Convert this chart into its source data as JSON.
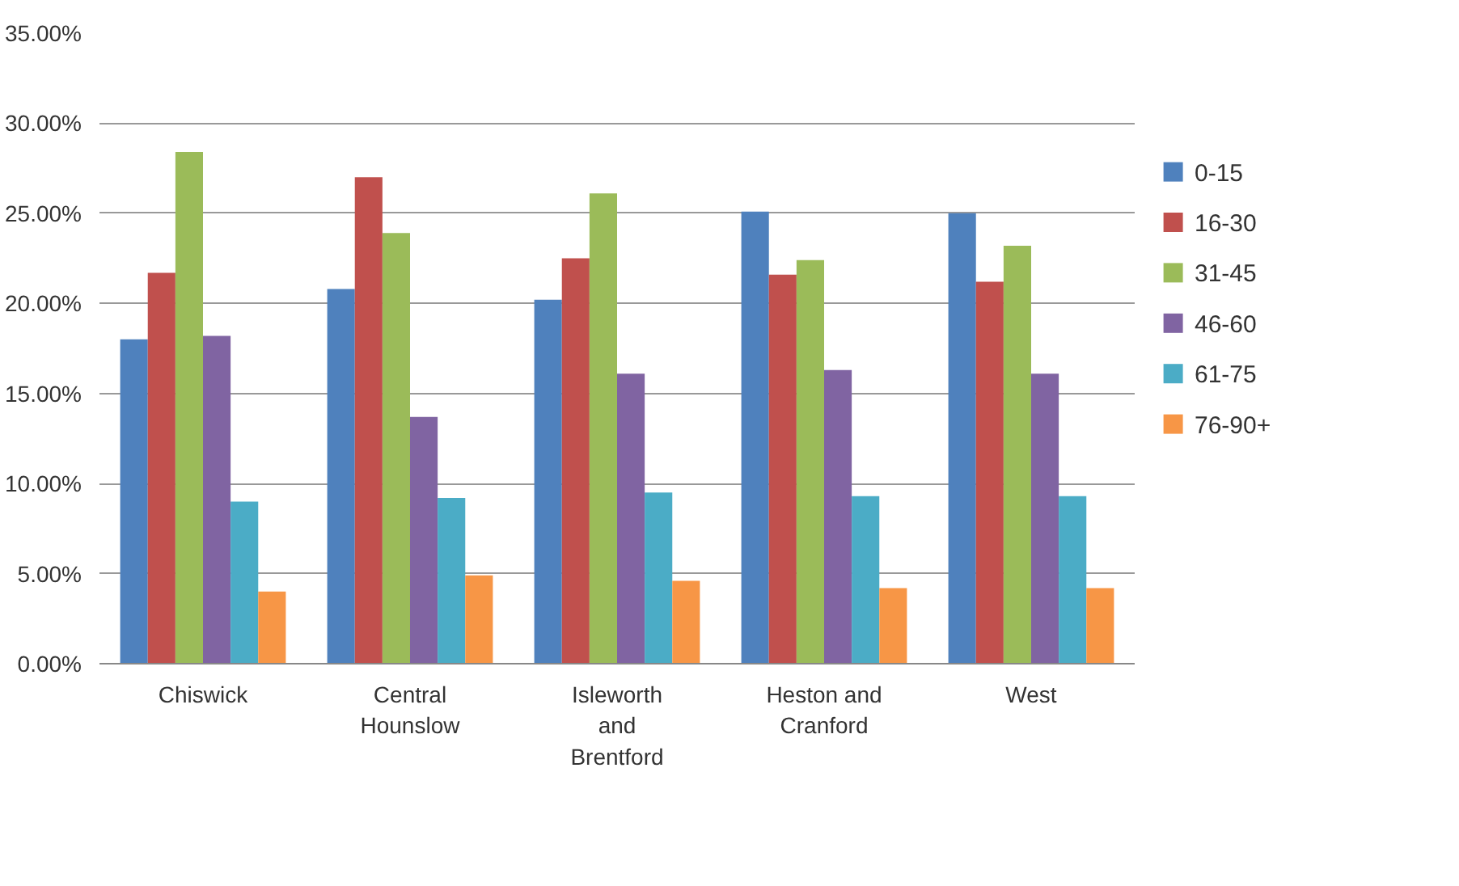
{
  "chart_data": {
    "type": "bar",
    "categories": [
      "Chiswick",
      "Central Hounslow",
      "Isleworth and Brentford",
      "Heston and Cranford",
      "West"
    ],
    "series": [
      {
        "name": "0-15",
        "color": "#4f81bd",
        "values": [
          18.0,
          20.8,
          20.2,
          25.1,
          25.0
        ]
      },
      {
        "name": "16-30",
        "color": "#c0504d",
        "values": [
          21.7,
          27.0,
          22.5,
          21.6,
          21.2
        ]
      },
      {
        "name": "31-45",
        "color": "#9bbb59",
        "values": [
          28.4,
          23.9,
          26.1,
          22.4,
          23.2
        ]
      },
      {
        "name": "46-60",
        "color": "#8064a2",
        "values": [
          18.2,
          13.7,
          16.1,
          16.3,
          16.1
        ]
      },
      {
        "name": "61-75",
        "color": "#4bacc6",
        "values": [
          9.0,
          9.2,
          9.5,
          9.3,
          9.3
        ]
      },
      {
        "name": "76-90+",
        "color": "#f79646",
        "values": [
          4.0,
          4.9,
          4.6,
          4.2,
          4.2
        ]
      }
    ],
    "ylim": [
      0,
      35
    ],
    "yticks": [
      {
        "value": 0,
        "label": "0.00%"
      },
      {
        "value": 5,
        "label": "5.00%"
      },
      {
        "value": 10,
        "label": "10.00%"
      },
      {
        "value": 15,
        "label": "15.00%"
      },
      {
        "value": 20,
        "label": "20.00%"
      },
      {
        "value": 25,
        "label": "25.00%"
      },
      {
        "value": 30,
        "label": "30.00%"
      },
      {
        "value": 35,
        "label": "35.00%"
      }
    ],
    "grid": "y",
    "legend": "right"
  }
}
